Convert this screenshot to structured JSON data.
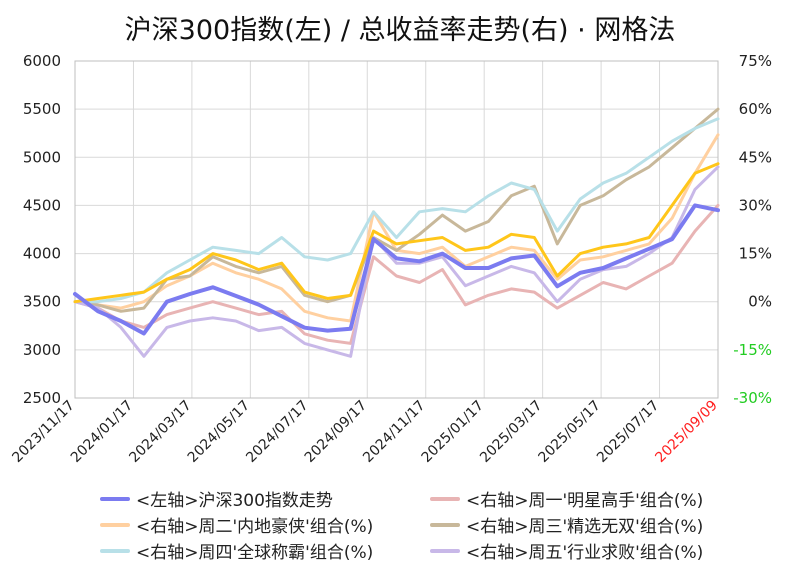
{
  "chart_data": {
    "type": "line",
    "title": "沪深300指数(左)  /  总收益率走势(右) · 网格法",
    "x_labels": [
      "2023/11/17",
      "2024/01/17",
      "2024/03/17",
      "2024/05/17",
      "2024/07/17",
      "2024/09/17",
      "2024/11/17",
      "2025/01/17",
      "2025/03/17",
      "2025/05/17",
      "2025/07/17",
      "2025/09/09"
    ],
    "x_label_colors": [
      "#222222",
      "#222222",
      "#222222",
      "#222222",
      "#222222",
      "#222222",
      "#222222",
      "#222222",
      "#222222",
      "#222222",
      "#222222",
      "#ff2020"
    ],
    "y_left": {
      "ticks": [
        "6000",
        "5500",
        "5000",
        "4500",
        "4000",
        "3500",
        "3000",
        "2500"
      ],
      "lim": [
        2500,
        6000
      ]
    },
    "y_right": {
      "ticks": [
        "75%",
        "60%",
        "45%",
        "30%",
        "15%",
        "0%",
        "-15%",
        "-30%"
      ],
      "tick_colors": [
        "#222222",
        "#222222",
        "#222222",
        "#222222",
        "#222222",
        "#222222",
        "#22cc22",
        "#22cc22"
      ],
      "lim": [
        -30,
        75
      ]
    },
    "grid": true,
    "legend_position": "bottom",
    "series": [
      {
        "name": "<左轴>沪深300指数走势",
        "axis": "left",
        "color": "#7b7bf0",
        "values": [
          3580,
          3400,
          3300,
          3170,
          3500,
          3580,
          3650,
          3560,
          3470,
          3350,
          3230,
          3200,
          3220,
          4150,
          3950,
          3920,
          4000,
          3850,
          3850,
          3950,
          3980,
          3660,
          3800,
          3850,
          3950,
          4050,
          4150,
          4500,
          4450
        ]
      },
      {
        "name": "<右轴>周一'明星高手'组合(%)",
        "axis": "right",
        "color": "#e8b4b4",
        "values": [
          0,
          -2,
          -6,
          -8,
          -4,
          -2,
          0,
          -2,
          -4,
          -3,
          -10,
          -12,
          -13,
          14,
          8,
          6,
          10,
          -1,
          2,
          4,
          3,
          -2,
          2,
          6,
          4,
          8,
          12,
          22,
          30
        ]
      },
      {
        "name": "<右轴>周二'内地豪侠'组合(%)",
        "axis": "right",
        "color": "#ffd0a0",
        "values": [
          0,
          -1,
          -2,
          0,
          5,
          8,
          12,
          9,
          7,
          4,
          -3,
          -5,
          -6,
          28,
          16,
          15,
          17,
          11,
          14,
          17,
          16,
          7,
          13,
          14,
          16,
          18,
          26,
          40,
          52
        ]
      },
      {
        "name": "<右轴>周三'精选无双'组合(%)",
        "axis": "right",
        "color": "#c8b89a",
        "values": [
          0,
          -1,
          -3,
          -2,
          7,
          8,
          14,
          11,
          9,
          11,
          2,
          0,
          2,
          20,
          16,
          21,
          27,
          22,
          25,
          33,
          36,
          18,
          30,
          33,
          38,
          42,
          48,
          54,
          60
        ]
      },
      {
        "name": "<右轴>周四'全球称霸'组合(%)",
        "axis": "right",
        "color": "#b8e0e8",
        "values": [
          0,
          0,
          1,
          3,
          9,
          13,
          17,
          16,
          15,
          20,
          14,
          13,
          15,
          28,
          20,
          28,
          29,
          28,
          33,
          37,
          35,
          22,
          32,
          37,
          40,
          45,
          50,
          54,
          57
        ]
      },
      {
        "name": "<右轴>周五'行业求败'组合(%)",
        "axis": "right",
        "color": "#c8b8e8",
        "values": [
          0,
          -2,
          -8,
          -17,
          -8,
          -6,
          -5,
          -6,
          -9,
          -8,
          -13,
          -15,
          -17,
          20,
          12,
          12,
          14,
          5,
          8,
          11,
          9,
          0,
          7,
          10,
          11,
          15,
          20,
          35,
          42
        ]
      },
      {
        "name": "",
        "axis": "right",
        "color": "#ffc61a",
        "in_legend": false,
        "values": [
          0,
          1,
          2,
          3,
          7,
          10,
          15,
          13,
          10,
          12,
          3,
          1,
          2,
          22,
          18,
          19,
          20,
          16,
          17,
          21,
          20,
          8,
          15,
          17,
          18,
          20,
          30,
          40,
          43
        ]
      }
    ]
  },
  "legend_items": [
    {
      "label": "<左轴>沪深300指数走势",
      "color": "#7b7bf0"
    },
    {
      "label": "<右轴>周一'明星高手'组合(%)",
      "color": "#e8b4b4"
    },
    {
      "label": "<右轴>周二'内地豪侠'组合(%)",
      "color": "#ffd0a0"
    },
    {
      "label": "<右轴>周三'精选无双'组合(%)",
      "color": "#c8b89a"
    },
    {
      "label": "<右轴>周四'全球称霸'组合(%)",
      "color": "#b8e0e8"
    },
    {
      "label": "<右轴>周五'行业求败'组合(%)",
      "color": "#c8b8e8"
    }
  ]
}
